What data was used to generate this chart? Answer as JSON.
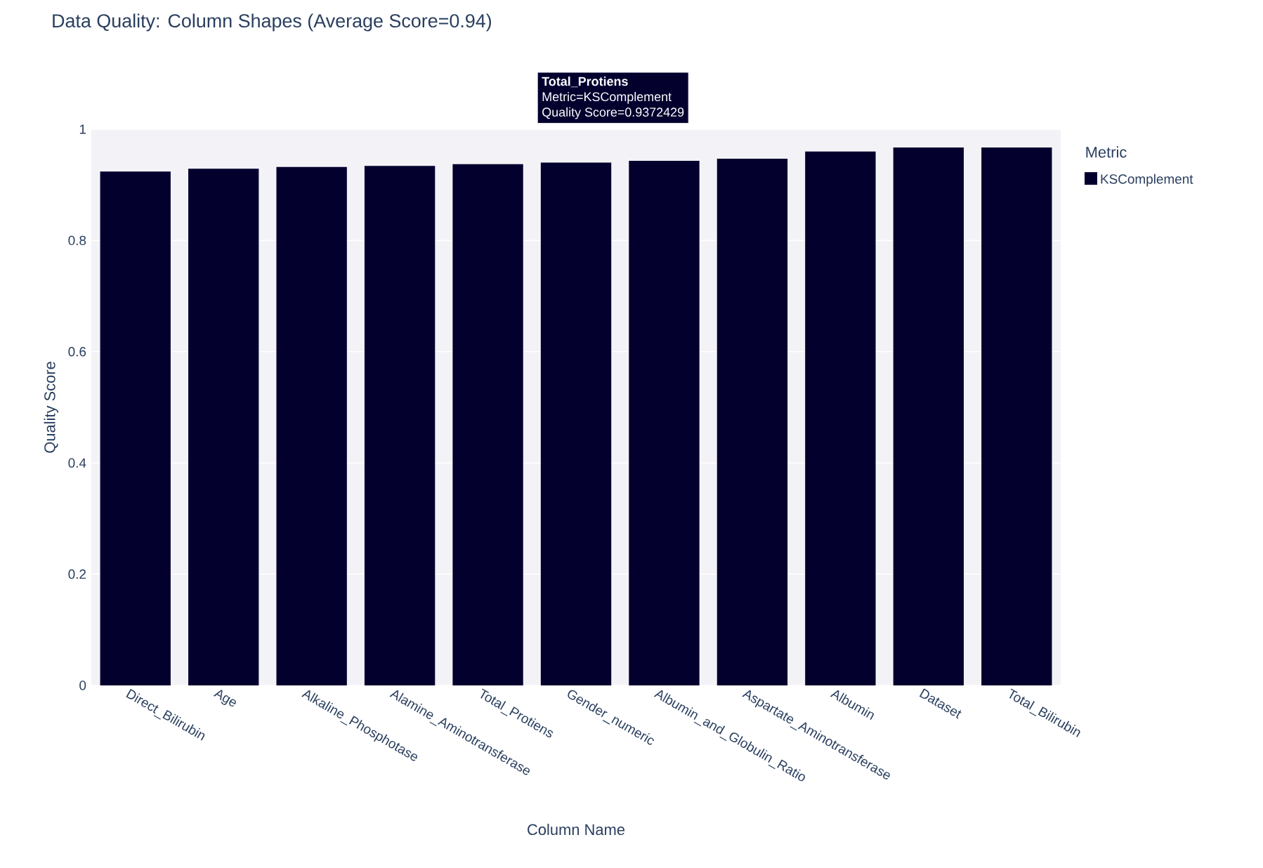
{
  "chart_data": {
    "type": "bar",
    "title": "Data Quality: Column Shapes (Average Score=0.94)",
    "xlabel": "Column Name",
    "ylabel": "Quality Score",
    "legend_title": "Metric",
    "categories": [
      "Direct_Bilirubin",
      "Age",
      "Alkaline_Phosphotase",
      "Alamine_Aminotransferase",
      "Total_Protiens",
      "Gender_numeric",
      "Albumin_and_Globulin_Ratio",
      "Aspartate_Aminotransferase",
      "Albumin",
      "Dataset",
      "Total_Bilirubin"
    ],
    "series": [
      {
        "name": "KSComplement",
        "color": "#03002e",
        "values": [
          0.924,
          0.929,
          0.932,
          0.934,
          0.9372429,
          0.94,
          0.943,
          0.947,
          0.96,
          0.967,
          0.967
        ]
      }
    ],
    "ylim": [
      0,
      1
    ],
    "yticks": [
      0,
      0.2,
      0.4,
      0.6,
      0.8,
      1
    ],
    "grid": "y",
    "legend": "top right",
    "annotations": [
      "Total_Protiens",
      "Metric=KSComplement",
      "Quality Score=0.9372429"
    ]
  }
}
